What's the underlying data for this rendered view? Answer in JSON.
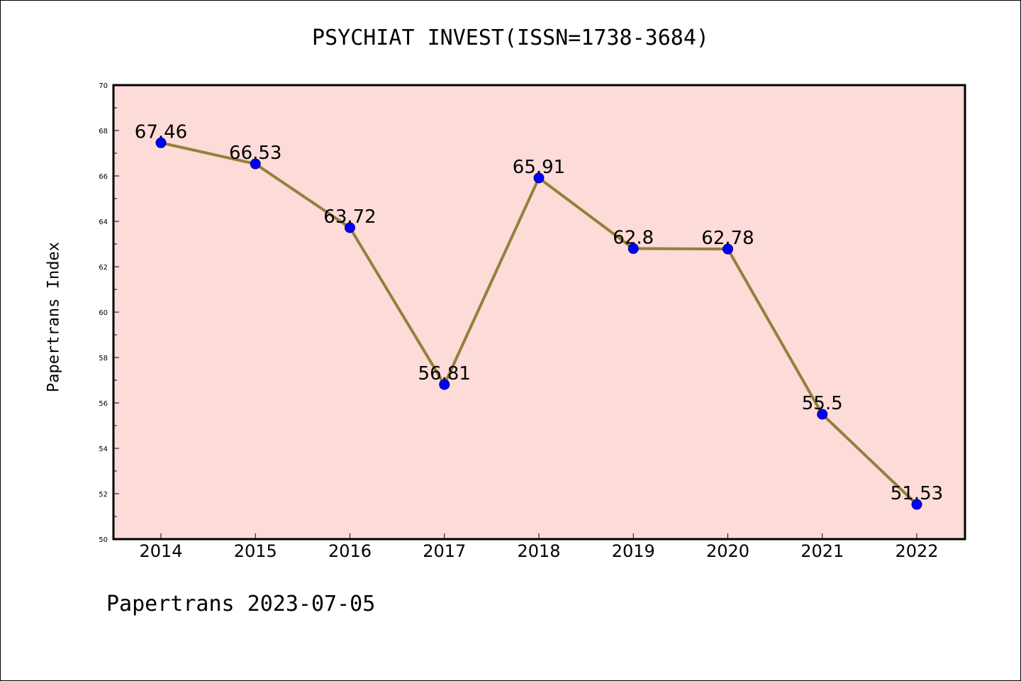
{
  "title": "PSYCHIAT INVEST(ISSN=1738-3684)",
  "footer": "Papertrans 2023-07-05",
  "colors": {
    "plot_background": "#fddbd8",
    "line": "#94803c",
    "marker": "#0000ff",
    "marker_edge": "#000080"
  },
  "chart_data": {
    "type": "line",
    "title": "PSYCHIAT INVEST(ISSN=1738-3684)",
    "xlabel": "",
    "ylabel": "Papertrans Index",
    "categories": [
      "2014",
      "2015",
      "2016",
      "2017",
      "2018",
      "2019",
      "2020",
      "2021",
      "2022"
    ],
    "values": [
      67.46,
      66.53,
      63.72,
      56.81,
      65.91,
      62.8,
      62.78,
      55.5,
      51.53
    ],
    "data_labels": [
      "67.46",
      "66.53",
      "63.72",
      "56.81",
      "65.91",
      "62.8",
      "62.78",
      "55.5",
      "51.53"
    ],
    "ylim": [
      50,
      70
    ],
    "yticks": [
      50,
      52,
      54,
      56,
      58,
      60,
      62,
      64,
      66,
      68,
      70
    ],
    "grid": false,
    "legend": "none"
  }
}
